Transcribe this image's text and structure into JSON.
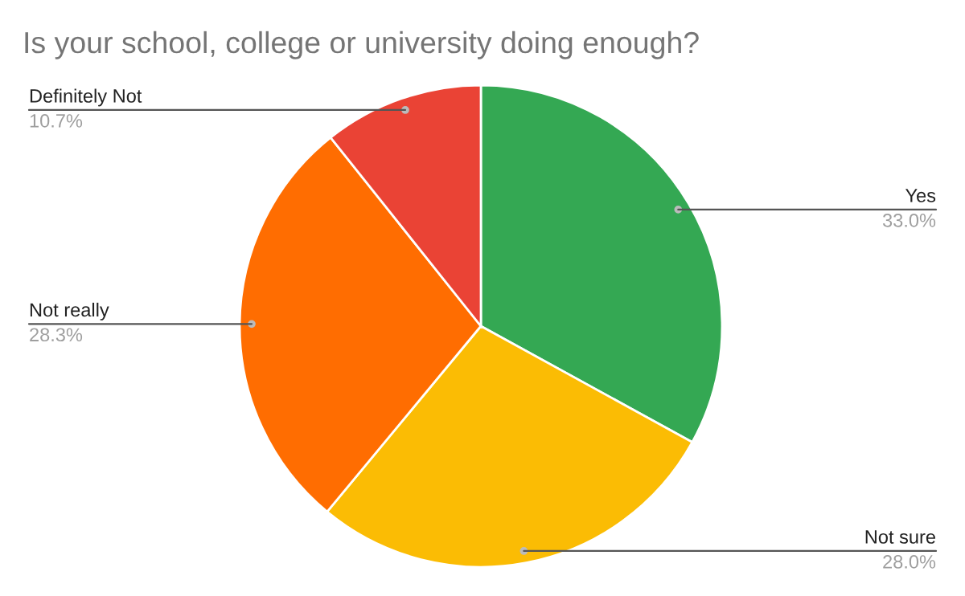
{
  "chart_data": {
    "type": "pie",
    "title": "Is your school, college or university doing enough?",
    "categories": [
      "Yes",
      "Not sure",
      "Not really",
      "Definitely Not"
    ],
    "values": [
      33.0,
      28.0,
      28.3,
      10.7
    ],
    "colors": [
      "#34a853",
      "#fbbc04",
      "#ff6d01",
      "#ea4335"
    ],
    "value_labels": [
      "33.0%",
      "28.0%",
      "28.3%",
      "10.7%"
    ],
    "legend": false
  }
}
